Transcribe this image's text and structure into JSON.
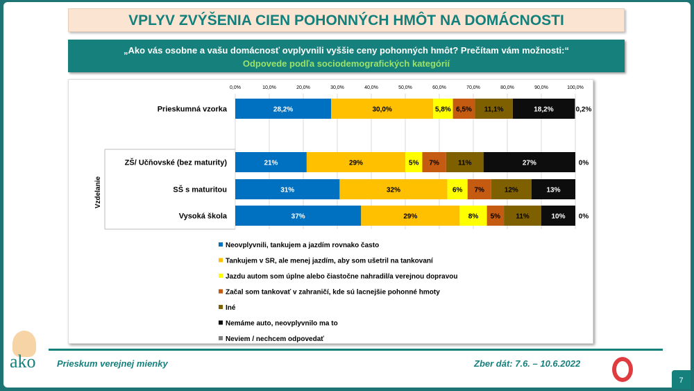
{
  "title": "VPLYV ZVÝŠENIA CIEN POHONNÝCH HMÔT NA DOMÁCNOSTI",
  "question": "„Ako vás osobne a vašu domácnosť ovplyvnili vyššie ceny pohonných hmôt? Prečítam vám možnosti:“",
  "subtitle": "Odpovede podľa sociodemografických kategórií",
  "footer": {
    "left": "Prieskum verejnej mienky",
    "right": "Zber dát: 7.6. – 10.6.2022",
    "page": "7",
    "logo_text": "ako"
  },
  "chart_data": {
    "type": "bar",
    "orientation": "horizontal",
    "stacked": true,
    "xlim": [
      0,
      100
    ],
    "grid": true,
    "legend_position": "bottom",
    "ticks": [
      "0,0%",
      "10,0%",
      "20,0%",
      "30,0%",
      "40,0%",
      "50,0%",
      "60,0%",
      "70,0%",
      "80,0%",
      "90,0%",
      "100,0%"
    ],
    "group_label": "Vzdelanie",
    "categories": [
      "Prieskumná vzorka",
      "ZŠ/ Učňovské (bez maturity)",
      "SŠ s maturitou",
      "Vysoká škola"
    ],
    "series": [
      {
        "name": "Neovplyvnili, tankujem a jazdím rovnako často",
        "color": "#0070c0",
        "values": [
          28.2,
          21,
          31,
          37
        ],
        "labels": [
          "28,2%",
          "21%",
          "31%",
          "37%"
        ]
      },
      {
        "name": "Tankujem v SR, ale menej jazdím, aby som ušetril na tankovaní",
        "color": "#ffc000",
        "values": [
          30.0,
          29,
          32,
          29
        ],
        "labels": [
          "30,0%",
          "29%",
          "32%",
          "29%"
        ]
      },
      {
        "name": "Jazdu autom som úplne alebo čiastočne nahradil/a verejnou dopravou",
        "color": "#ffff00",
        "values": [
          5.8,
          5,
          6,
          8
        ],
        "labels": [
          "5,8%",
          "5%",
          "6%",
          "8%"
        ]
      },
      {
        "name": "Začal som tankovať v zahraničí, kde sú lacnejšie pohonné hmoty",
        "color": "#c55a11",
        "values": [
          6.5,
          7,
          7,
          5
        ],
        "labels": [
          "6,5%",
          "7%",
          "7%",
          "5%"
        ]
      },
      {
        "name": "Iné",
        "color": "#7f6000",
        "values": [
          11.1,
          11,
          12,
          11
        ],
        "labels": [
          "11,1%",
          "11%",
          "12%",
          "11%"
        ]
      },
      {
        "name": "Nemáme auto, neovplyvnilo ma to",
        "color": "#0d0d0d",
        "values": [
          18.2,
          27,
          13,
          10
        ],
        "labels": [
          "18,2%",
          "27%",
          "13%",
          "10%"
        ]
      },
      {
        "name": "Neviem / nechcem odpovedať",
        "color": "#808080",
        "values": [
          0.2,
          0,
          null,
          0
        ],
        "labels": [
          "0,2%",
          "0%",
          "",
          "0%"
        ]
      }
    ]
  }
}
